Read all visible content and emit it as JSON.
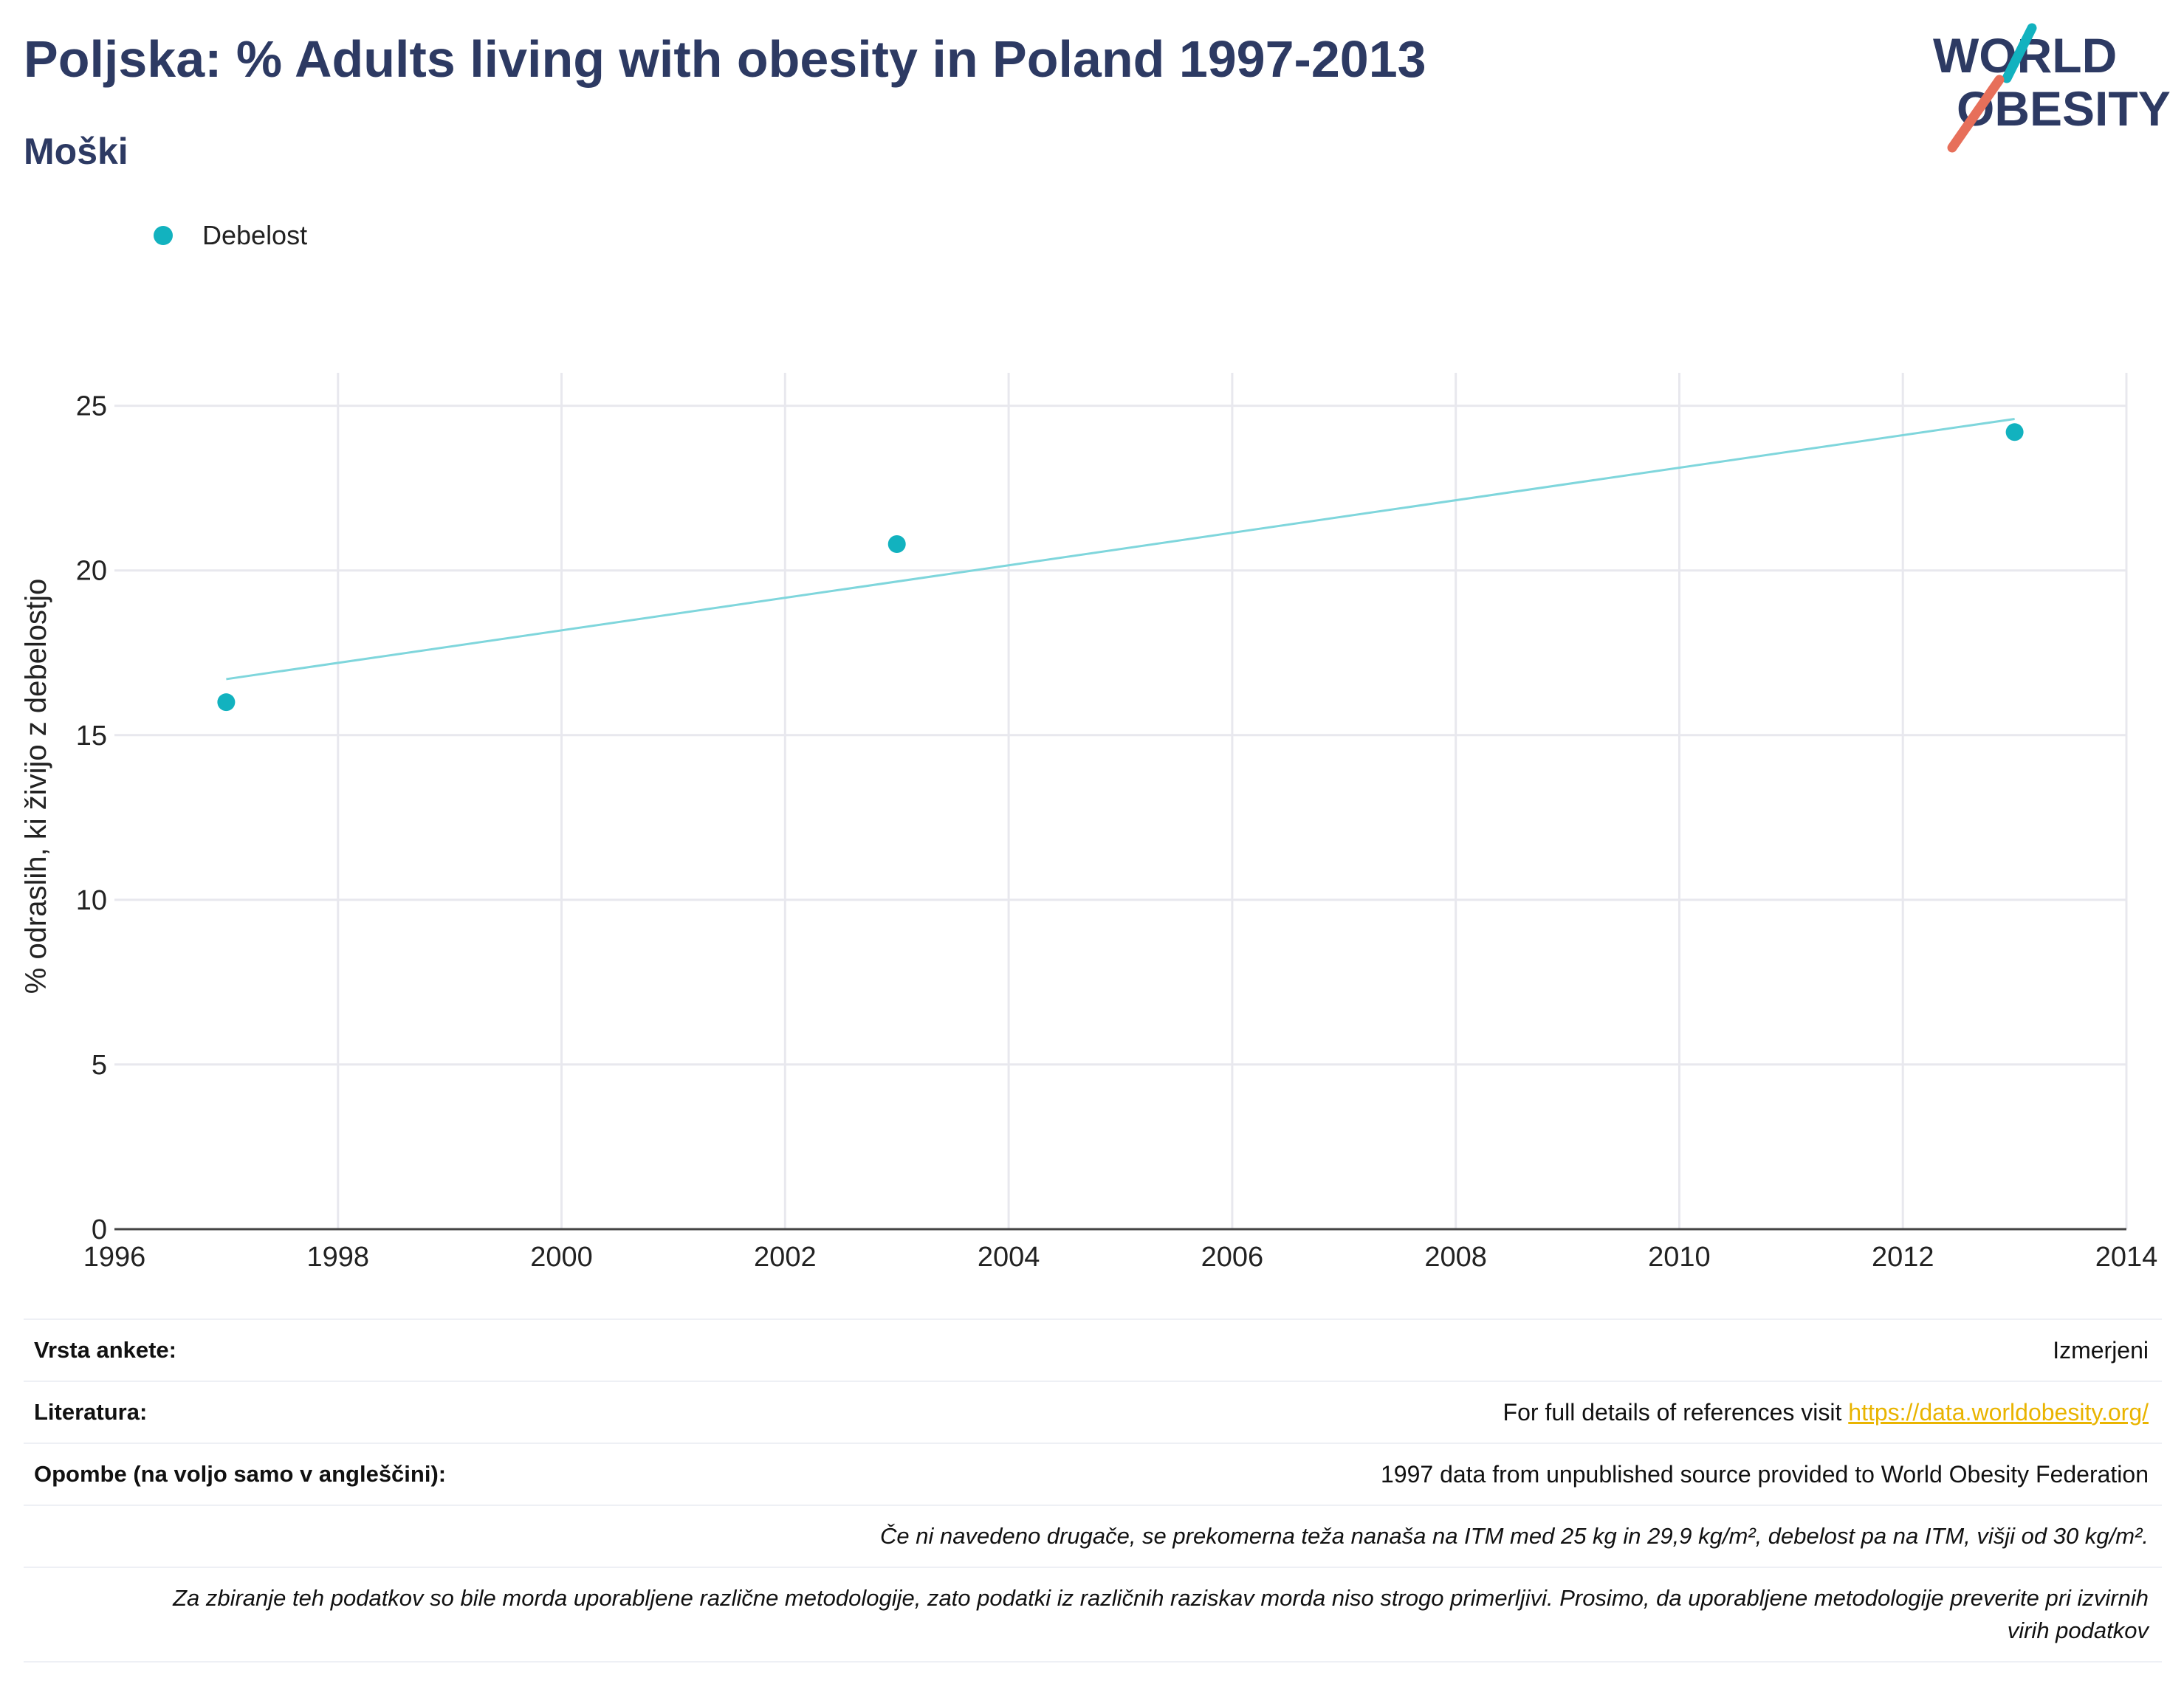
{
  "header": {
    "title": "Poljska: % Adults living with obesity in Poland 1997-2013",
    "subtitle": "Moški"
  },
  "logo": {
    "line1": "WORLD",
    "line2": "OBESITY",
    "colors": {
      "text": "#2d3a63",
      "teal": "#12b2bf",
      "coral": "#e76f5a"
    }
  },
  "legend": {
    "label": "Debelost",
    "color": "#12b2bf"
  },
  "chart_data": {
    "type": "scatter",
    "title": "",
    "xlabel": "",
    "ylabel": "% odraslih, ki živijo z debelostjo",
    "xlim": [
      1996,
      2014
    ],
    "ylim": [
      0,
      26
    ],
    "x_ticks": [
      1996,
      1998,
      2000,
      2002,
      2004,
      2006,
      2008,
      2010,
      2012,
      2014
    ],
    "y_ticks": [
      0,
      5,
      10,
      15,
      20,
      25
    ],
    "grid": true,
    "legend_position": "top-left",
    "series": [
      {
        "name": "Debelost",
        "color": "#12b2bf",
        "x": [
          1997,
          2003,
          2013
        ],
        "y": [
          16.0,
          20.8,
          24.2
        ]
      }
    ],
    "trendline": {
      "color": "#7fd6dc",
      "x": [
        1997,
        2013
      ],
      "y": [
        16.7,
        24.6
      ]
    }
  },
  "footer": {
    "survey_type_label": "Vrsta ankete:",
    "survey_type_value": "Izmerjeni",
    "references_label": "Literatura:",
    "references_text": "For full details of references visit ",
    "references_link": "https://data.worldobesity.org/",
    "notes_label": "Opombe (na voljo samo v angleščini):",
    "notes_value": "1997 data from unpublished source provided to World Obesity Federation",
    "definition_note": "Če ni navedeno drugače, se prekomerna teža nanaša na ITM med 25 kg in 29,9 kg/m², debelost pa na ITM, višji od 30 kg/m².",
    "methodology_note": "Za zbiranje teh podatkov so bile morda uporabljene različne metodologije, zato podatki iz različnih raziskav morda niso strogo primerljivi. Prosimo, da uporabljene metodologije preverite pri izvirnih virih podatkov"
  }
}
